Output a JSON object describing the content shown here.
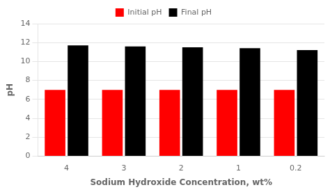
{
  "chart_data": {
    "type": "bar",
    "categories": [
      "4",
      "3",
      "2",
      "1",
      "0.2"
    ],
    "series": [
      {
        "name": "Initial pH",
        "color": "#ff0000",
        "values": [
          7.0,
          7.0,
          7.0,
          7.0,
          7.0
        ]
      },
      {
        "name": "Final pH",
        "color": "#000000",
        "values": [
          11.7,
          11.6,
          11.5,
          11.4,
          11.2
        ]
      }
    ],
    "xlabel": "Sodium Hydroxide Concentration, wt%",
    "ylabel": "pH",
    "ylim": [
      0,
      14
    ],
    "yticks": [
      0,
      2,
      4,
      6,
      8,
      10,
      12,
      14
    ],
    "grid": true,
    "legend": "top"
  }
}
